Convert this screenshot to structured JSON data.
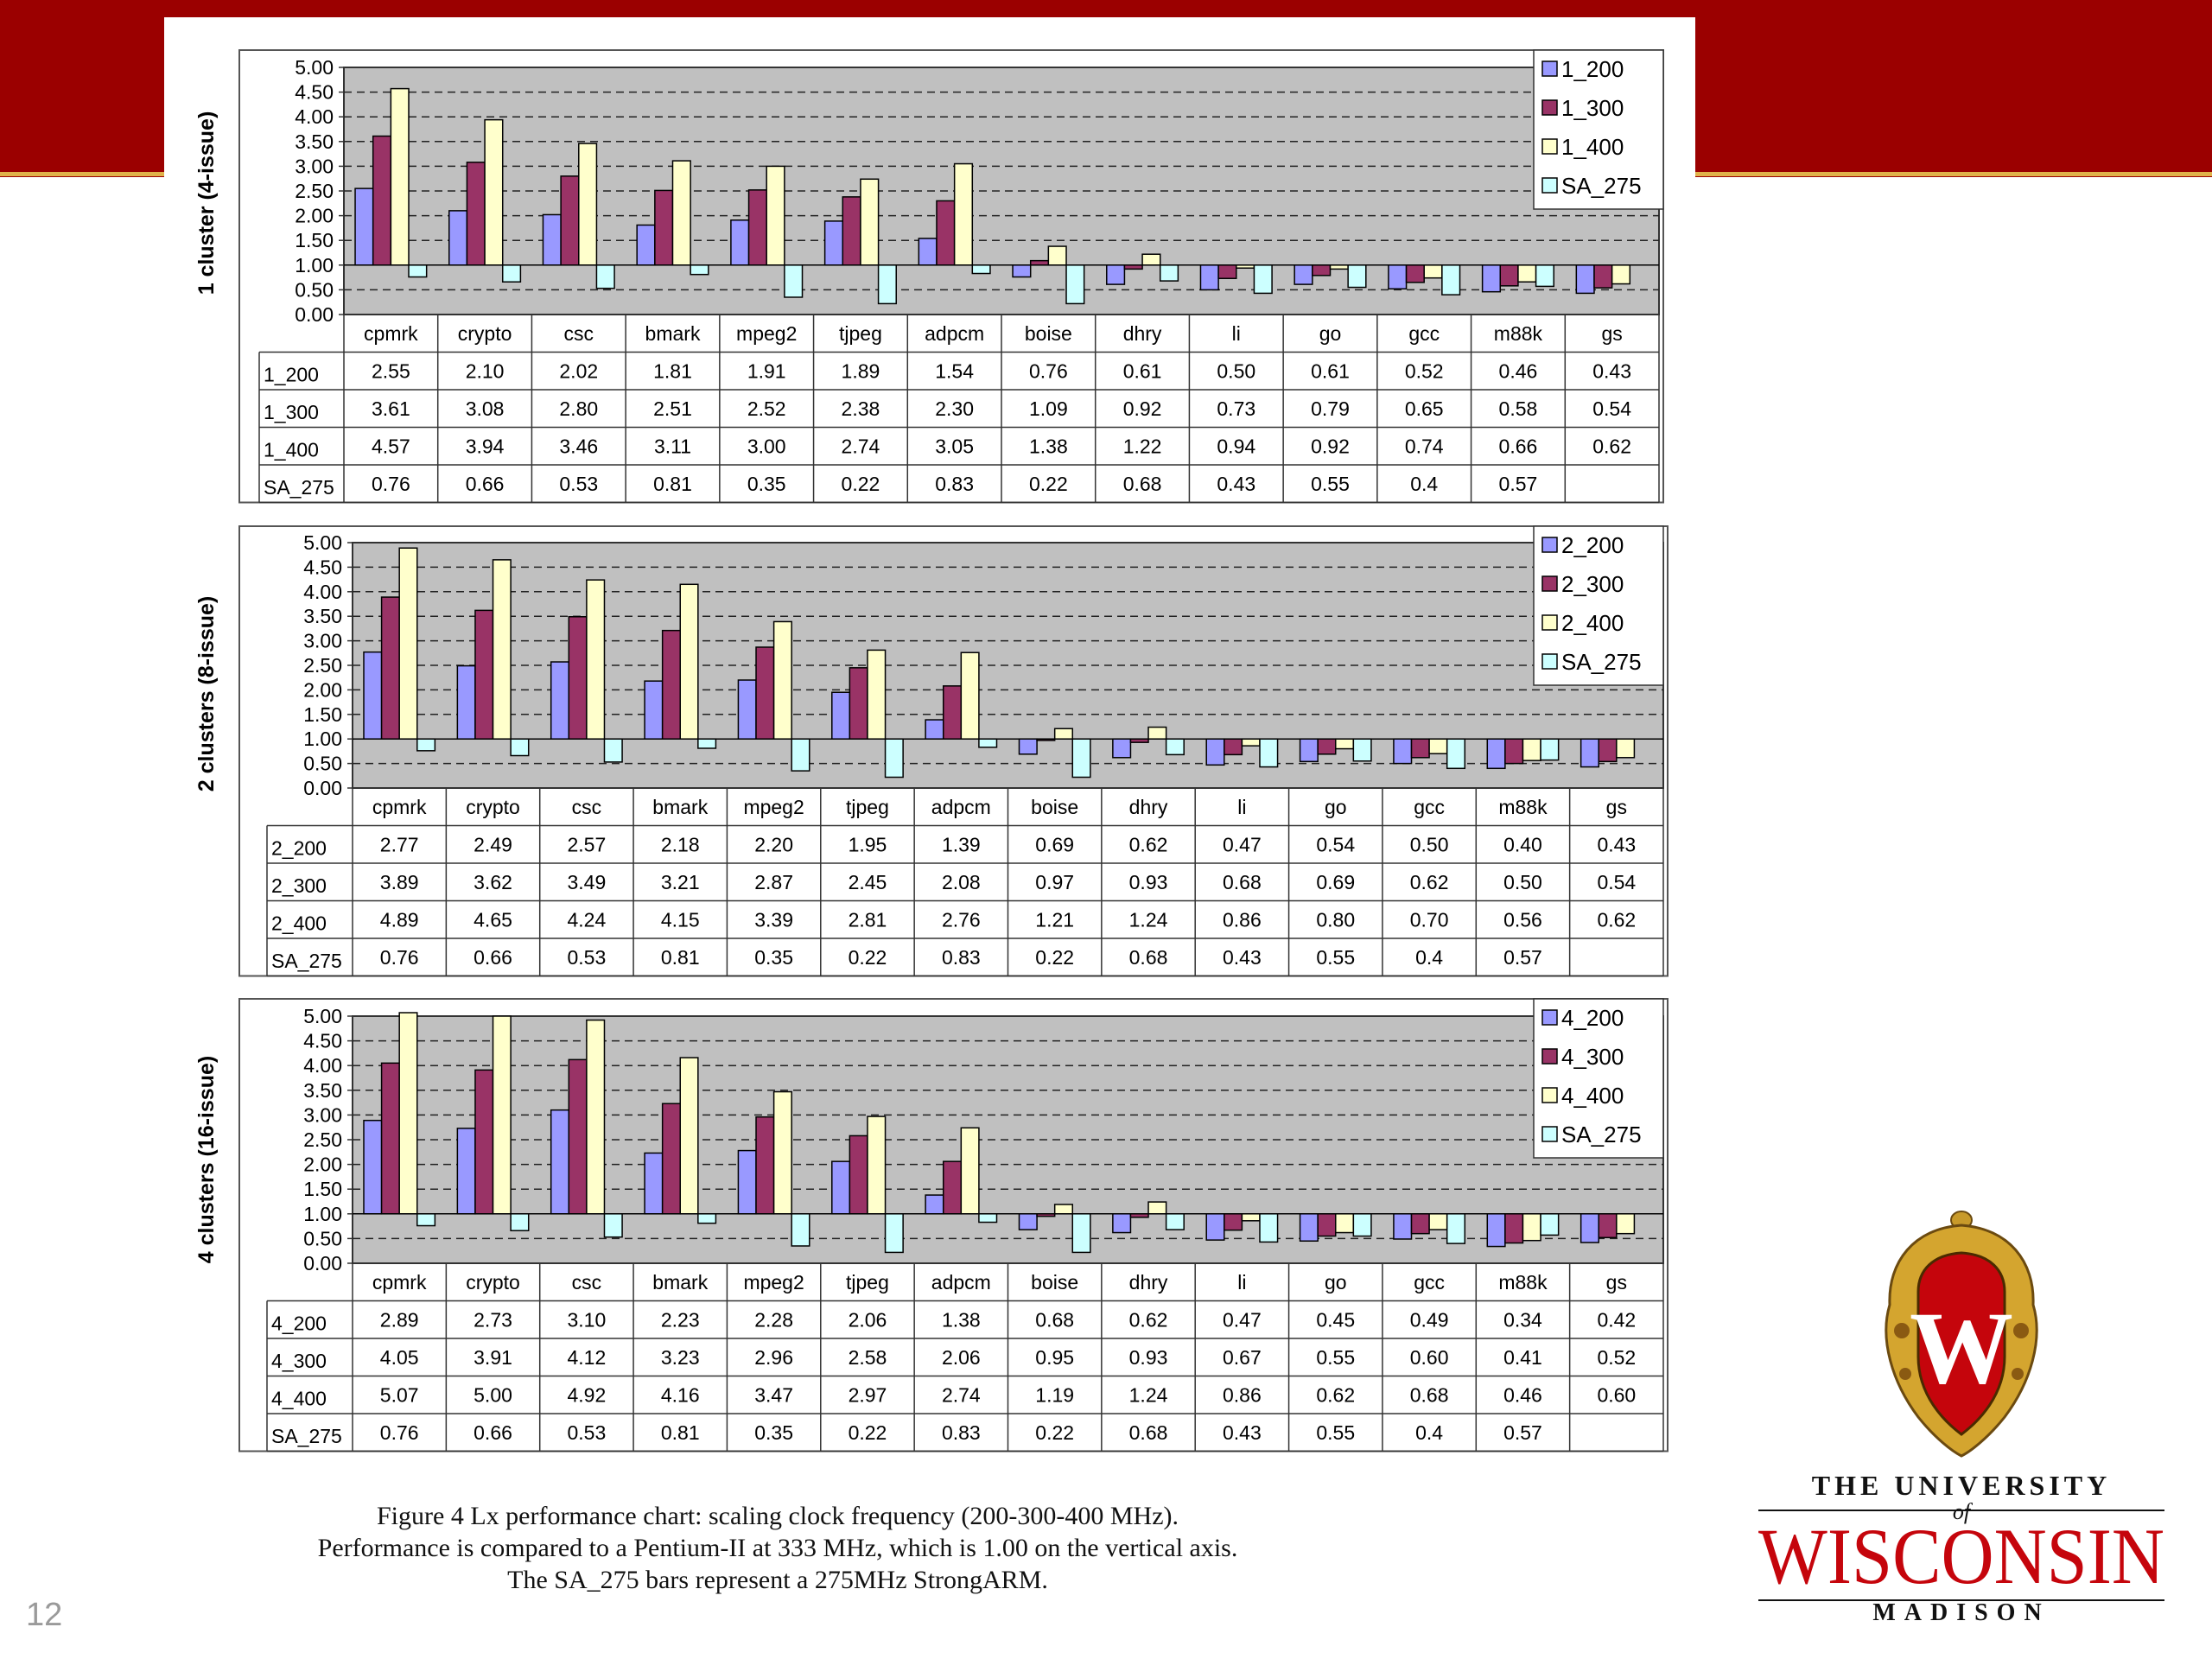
{
  "slide_number": "12",
  "caption": {
    "line1": "Figure 4 Lx performance chart: scaling clock frequency (200-300-400 MHz).",
    "line2": "Performance is compared to a Pentium-II at 333 MHz, which is 1.00 on the vertical axis.",
    "line3": "The SA_275 bars represent a 275MHz StrongARM."
  },
  "logo": {
    "line1": "THE UNIVERSITY",
    "of": "of",
    "line2": "WISCONSIN",
    "line3": "MADISON",
    "crest_letter": "W"
  },
  "colors": {
    "banner": "#9b0000",
    "accent": "#e0b24a",
    "plot_bg": "#c0c0c0",
    "series": [
      "#9999ff",
      "#993366",
      "#ffffcc",
      "#ccffff"
    ]
  },
  "chart_data": [
    {
      "type": "bar",
      "ylabel": "1 cluster (4-issue)",
      "ylim": [
        0,
        5
      ],
      "yticks": [
        "5.00",
        "4.50",
        "4.00",
        "3.50",
        "3.00",
        "2.50",
        "2.00",
        "1.50",
        "1.00",
        "0.50",
        "0.00"
      ],
      "baseline": 1.0,
      "grid": true,
      "legend": "top-right",
      "categories": [
        "cpmrk",
        "crypto",
        "csc",
        "bmark",
        "mpeg2",
        "tjpeg",
        "adpcm",
        "boise",
        "dhry",
        "li",
        "go",
        "gcc",
        "m88k",
        "gs"
      ],
      "series": [
        {
          "name": "1_200",
          "values": [
            2.55,
            2.1,
            2.02,
            1.81,
            1.91,
            1.89,
            1.54,
            0.76,
            0.61,
            0.5,
            0.61,
            0.52,
            0.46,
            0.43
          ],
          "labels": [
            "2.55",
            "2.10",
            "2.02",
            "1.81",
            "1.91",
            "1.89",
            "1.54",
            "0.76",
            "0.61",
            "0.50",
            "0.61",
            "0.52",
            "0.46",
            "0.43"
          ]
        },
        {
          "name": "1_300",
          "values": [
            3.61,
            3.08,
            2.8,
            2.51,
            2.52,
            2.38,
            2.3,
            1.09,
            0.92,
            0.73,
            0.79,
            0.65,
            0.58,
            0.54
          ],
          "labels": [
            "3.61",
            "3.08",
            "2.80",
            "2.51",
            "2.52",
            "2.38",
            "2.30",
            "1.09",
            "0.92",
            "0.73",
            "0.79",
            "0.65",
            "0.58",
            "0.54"
          ]
        },
        {
          "name": "1_400",
          "values": [
            4.57,
            3.94,
            3.46,
            3.11,
            3.0,
            2.74,
            3.05,
            1.38,
            1.22,
            0.94,
            0.92,
            0.74,
            0.66,
            0.62
          ],
          "labels": [
            "4.57",
            "3.94",
            "3.46",
            "3.11",
            "3.00",
            "2.74",
            "3.05",
            "1.38",
            "1.22",
            "0.94",
            "0.92",
            "0.74",
            "0.66",
            "0.62"
          ]
        },
        {
          "name": "SA_275",
          "values": [
            0.76,
            0.66,
            0.53,
            0.81,
            0.35,
            0.22,
            0.83,
            0.22,
            0.68,
            0.43,
            0.55,
            0.4,
            0.57,
            null
          ],
          "labels": [
            "0.76",
            "0.66",
            "0.53",
            "0.81",
            "0.35",
            "0.22",
            "0.83",
            "0.22",
            "0.68",
            "0.43",
            "0.55",
            "0.4",
            "0.57",
            ""
          ]
        }
      ]
    },
    {
      "type": "bar",
      "ylabel": "2 clusters (8-issue)",
      "ylim": [
        0,
        5
      ],
      "yticks": [
        "5.00",
        "4.50",
        "4.00",
        "3.50",
        "3.00",
        "2.50",
        "2.00",
        "1.50",
        "1.00",
        "0.50",
        "0.00"
      ],
      "baseline": 1.0,
      "grid": true,
      "legend": "top-right",
      "categories": [
        "cpmrk",
        "crypto",
        "csc",
        "bmark",
        "mpeg2",
        "tjpeg",
        "adpcm",
        "boise",
        "dhry",
        "li",
        "go",
        "gcc",
        "m88k",
        "gs"
      ],
      "series": [
        {
          "name": "2_200",
          "values": [
            2.77,
            2.49,
            2.57,
            2.18,
            2.2,
            1.95,
            1.39,
            0.69,
            0.62,
            0.47,
            0.54,
            0.5,
            0.4,
            0.43
          ],
          "labels": [
            "2.77",
            "2.49",
            "2.57",
            "2.18",
            "2.20",
            "1.95",
            "1.39",
            "0.69",
            "0.62",
            "0.47",
            "0.54",
            "0.50",
            "0.40",
            "0.43"
          ]
        },
        {
          "name": "2_300",
          "values": [
            3.89,
            3.62,
            3.49,
            3.21,
            2.87,
            2.45,
            2.08,
            0.97,
            0.93,
            0.68,
            0.69,
            0.62,
            0.5,
            0.54
          ],
          "labels": [
            "3.89",
            "3.62",
            "3.49",
            "3.21",
            "2.87",
            "2.45",
            "2.08",
            "0.97",
            "0.93",
            "0.68",
            "0.69",
            "0.62",
            "0.50",
            "0.54"
          ]
        },
        {
          "name": "2_400",
          "values": [
            4.89,
            4.65,
            4.24,
            4.15,
            3.39,
            2.81,
            2.76,
            1.21,
            1.24,
            0.86,
            0.8,
            0.7,
            0.56,
            0.62
          ],
          "labels": [
            "4.89",
            "4.65",
            "4.24",
            "4.15",
            "3.39",
            "2.81",
            "2.76",
            "1.21",
            "1.24",
            "0.86",
            "0.80",
            "0.70",
            "0.56",
            "0.62"
          ]
        },
        {
          "name": "SA_275",
          "values": [
            0.76,
            0.66,
            0.53,
            0.81,
            0.35,
            0.22,
            0.83,
            0.22,
            0.68,
            0.43,
            0.55,
            0.4,
            0.57,
            null
          ],
          "labels": [
            "0.76",
            "0.66",
            "0.53",
            "0.81",
            "0.35",
            "0.22",
            "0.83",
            "0.22",
            "0.68",
            "0.43",
            "0.55",
            "0.4",
            "0.57",
            ""
          ]
        }
      ]
    },
    {
      "type": "bar",
      "ylabel": "4 clusters (16-issue)",
      "ylim": [
        0,
        5
      ],
      "yticks": [
        "5.00",
        "4.50",
        "4.00",
        "3.50",
        "3.00",
        "2.50",
        "2.00",
        "1.50",
        "1.00",
        "0.50",
        "0.00"
      ],
      "baseline": 1.0,
      "grid": true,
      "legend": "top-right",
      "categories": [
        "cpmrk",
        "crypto",
        "csc",
        "bmark",
        "mpeg2",
        "tjpeg",
        "adpcm",
        "boise",
        "dhry",
        "li",
        "go",
        "gcc",
        "m88k",
        "gs"
      ],
      "series": [
        {
          "name": "4_200",
          "values": [
            2.89,
            2.73,
            3.1,
            2.23,
            2.28,
            2.06,
            1.38,
            0.68,
            0.62,
            0.47,
            0.45,
            0.49,
            0.34,
            0.42
          ],
          "labels": [
            "2.89",
            "2.73",
            "3.10",
            "2.23",
            "2.28",
            "2.06",
            "1.38",
            "0.68",
            "0.62",
            "0.47",
            "0.45",
            "0.49",
            "0.34",
            "0.42"
          ]
        },
        {
          "name": "4_300",
          "values": [
            4.05,
            3.91,
            4.12,
            3.23,
            2.96,
            2.58,
            2.06,
            0.95,
            0.93,
            0.67,
            0.55,
            0.6,
            0.41,
            0.52
          ],
          "labels": [
            "4.05",
            "3.91",
            "4.12",
            "3.23",
            "2.96",
            "2.58",
            "2.06",
            "0.95",
            "0.93",
            "0.67",
            "0.55",
            "0.60",
            "0.41",
            "0.52"
          ]
        },
        {
          "name": "4_400",
          "values": [
            5.07,
            5.0,
            4.92,
            4.16,
            3.47,
            2.97,
            2.74,
            1.19,
            1.24,
            0.86,
            0.62,
            0.68,
            0.46,
            0.6
          ],
          "labels": [
            "5.07",
            "5.00",
            "4.92",
            "4.16",
            "3.47",
            "2.97",
            "2.74",
            "1.19",
            "1.24",
            "0.86",
            "0.62",
            "0.68",
            "0.46",
            "0.60"
          ]
        },
        {
          "name": "SA_275",
          "values": [
            0.76,
            0.66,
            0.53,
            0.81,
            0.35,
            0.22,
            0.83,
            0.22,
            0.68,
            0.43,
            0.55,
            0.4,
            0.57,
            null
          ],
          "labels": [
            "0.76",
            "0.66",
            "0.53",
            "0.81",
            "0.35",
            "0.22",
            "0.83",
            "0.22",
            "0.68",
            "0.43",
            "0.55",
            "0.4",
            "0.57",
            ""
          ]
        }
      ]
    }
  ]
}
